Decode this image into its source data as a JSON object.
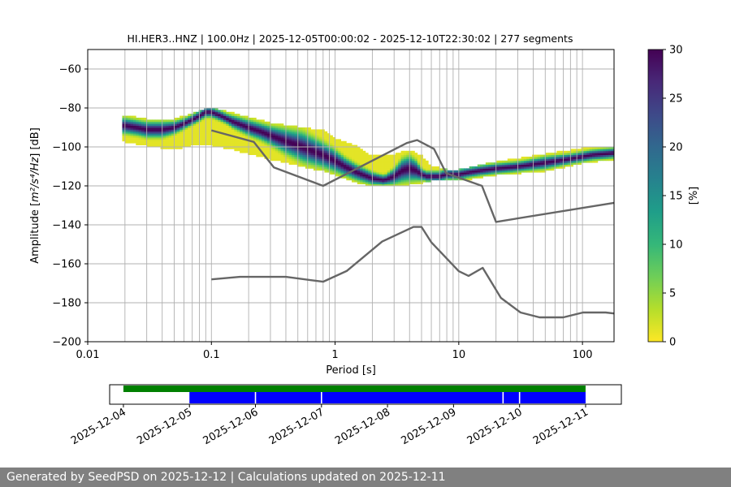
{
  "chart_data": {
    "type": "heatmap",
    "title": "HI.HER3..HNZ | 100.0Hz | 2025-12-05T00:00:02 - 2025-12-10T22:30:02 | 277 segments",
    "xlabel": "Period [s]",
    "ylabel_prefix": "Amplitude [",
    "ylabel_math": "m²/s⁴/Hz",
    "ylabel_suffix": "] [dB]",
    "xscale": "log",
    "xlim": [
      0.01,
      180
    ],
    "ylim": [
      -200,
      -50
    ],
    "xticks": [
      {
        "value": 0.01,
        "label": "0.01"
      },
      {
        "value": 0.1,
        "label": "0.1"
      },
      {
        "value": 1,
        "label": "1"
      },
      {
        "value": 10,
        "label": "10"
      },
      {
        "value": 100,
        "label": "100"
      }
    ],
    "yticks": [
      {
        "value": -60,
        "label": "−60"
      },
      {
        "value": -80,
        "label": "−80"
      },
      {
        "value": -100,
        "label": "−100"
      },
      {
        "value": -120,
        "label": "−120"
      },
      {
        "value": -140,
        "label": "−140"
      },
      {
        "value": -160,
        "label": "−160"
      },
      {
        "value": -180,
        "label": "−180"
      },
      {
        "value": -200,
        "label": "−200"
      }
    ],
    "grid_periods": [
      0.02,
      0.03,
      0.04,
      0.05,
      0.06,
      0.07,
      0.08,
      0.09,
      0.1,
      0.2,
      0.3,
      0.4,
      0.5,
      0.6,
      0.7,
      0.8,
      0.9,
      1,
      2,
      3,
      4,
      5,
      6,
      7,
      8,
      9,
      10,
      20,
      30,
      40,
      50,
      60,
      70,
      80,
      90,
      100
    ],
    "mode_curve": {
      "name": "Mode",
      "x": [
        0.02,
        0.025,
        0.03,
        0.04,
        0.05,
        0.06,
        0.07,
        0.08,
        0.09,
        0.1,
        0.12,
        0.15,
        0.2,
        0.25,
        0.3,
        0.4,
        0.5,
        0.6,
        0.8,
        1,
        1.2,
        1.5,
        2,
        2.5,
        3,
        3.5,
        4,
        4.5,
        5,
        5.5,
        6,
        7,
        8,
        10,
        12,
        15,
        20,
        30,
        50,
        80,
        120,
        180
      ],
      "y": [
        -89,
        -90,
        -91,
        -91,
        -90,
        -88,
        -86,
        -84,
        -82,
        -82,
        -84,
        -87,
        -90,
        -92,
        -94,
        -97,
        -99,
        -101,
        -104,
        -107,
        -110,
        -113,
        -116,
        -117,
        -115,
        -112,
        -111,
        -112,
        -114,
        -115,
        -115,
        -115,
        -114,
        -114,
        -113,
        -112,
        -111,
        -110,
        -108,
        -106,
        -104,
        -103
      ]
    },
    "distribution_band": {
      "x": [
        0.02,
        0.03,
        0.05,
        0.08,
        0.1,
        0.15,
        0.2,
        0.3,
        0.5,
        0.8,
        1,
        1.5,
        2,
        3,
        4,
        5,
        6,
        8,
        10,
        20,
        50,
        100,
        180
      ],
      "low": [
        -97,
        -99,
        -101,
        -98,
        -99,
        -101,
        -103,
        -106,
        -109,
        -112,
        -114,
        -118,
        -120,
        -120,
        -119,
        -118,
        -117,
        -117,
        -117,
        -114,
        -112,
        -108,
        -106
      ],
      "high": [
        -84,
        -86,
        -86,
        -82,
        -80,
        -83,
        -85,
        -88,
        -90,
        -92,
        -96,
        -100,
        -105,
        -104,
        -102,
        -105,
        -110,
        -112,
        -112,
        -108,
        -104,
        -101,
        -100
      ]
    },
    "noise_models": [
      {
        "name": "NHNM",
        "x": [
          0.1,
          0.22,
          0.32,
          0.8,
          3.8,
          4.6,
          6.3,
          7.9,
          15.4,
          20,
          180
        ],
        "y": [
          -91.5,
          -97.4,
          -110.5,
          -120,
          -98,
          -96.5,
          -101,
          -113.5,
          -120,
          -138.5,
          -128.7
        ]
      },
      {
        "name": "NLNM",
        "x": [
          0.1,
          0.17,
          0.4,
          0.8,
          1.24,
          2.4,
          4.3,
          5,
          6,
          10,
          12,
          15.6,
          21.9,
          31.6,
          45,
          70,
          101,
          154,
          180
        ],
        "y": [
          -168,
          -166.7,
          -166.7,
          -169.2,
          -163.7,
          -148.6,
          -141.1,
          -141.1,
          -149,
          -163.8,
          -166.2,
          -162.1,
          -177.5,
          -185,
          -187.5,
          -187.5,
          -185,
          -185,
          -185.5
        ]
      }
    ],
    "colorbar": {
      "label": "[%]",
      "min": 0,
      "max": 30,
      "ticks": [
        {
          "value": 0,
          "label": "0"
        },
        {
          "value": 5,
          "label": "5"
        },
        {
          "value": 10,
          "label": "10"
        },
        {
          "value": 15,
          "label": "15"
        },
        {
          "value": 20,
          "label": "20"
        },
        {
          "value": 25,
          "label": "25"
        },
        {
          "value": 30,
          "label": "30"
        }
      ],
      "colormap": [
        "#fde725",
        "#b5de2b",
        "#6ece58",
        "#35b779",
        "#1f9e89",
        "#26828e",
        "#31688e",
        "#3e4989",
        "#482878",
        "#440154"
      ]
    },
    "timeline": {
      "start": "2025-12-03 19:00",
      "end": "2025-12-11 13:00",
      "ticks": [
        "2025-12-04",
        "2025-12-05",
        "2025-12-06",
        "2025-12-07",
        "2025-12-08",
        "2025-12-09",
        "2025-12-10",
        "2025-12-11"
      ],
      "available": {
        "color": "#008000",
        "start": "2025-12-04 00:00",
        "end": "2025-12-11 00:00"
      },
      "used": {
        "color": "#0000ff",
        "start": "2025-12-05 00:00",
        "end": "2025-12-11 00:00",
        "gaps": [
          "2025-12-06 00:00",
          "2025-12-07 00:00",
          "2025-12-09 18:00",
          "2025-12-10 00:00"
        ]
      }
    }
  },
  "footer": {
    "text": "Generated by SeedPSD on 2025-12-12 | Calculations updated on 2025-12-11"
  }
}
